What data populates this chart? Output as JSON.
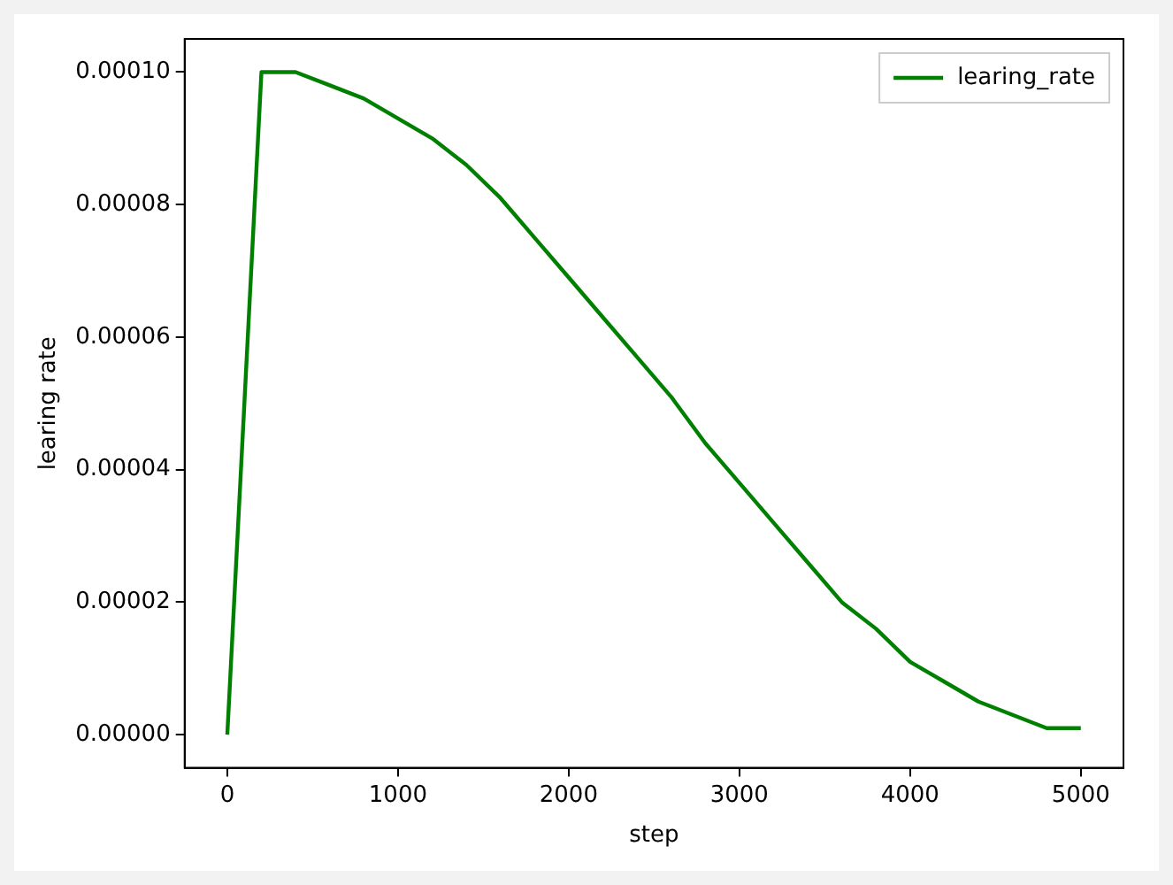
{
  "chart_data": {
    "type": "line",
    "xlabel": "step",
    "ylabel": "learing rate",
    "x": [
      0,
      200,
      400,
      600,
      800,
      1000,
      1200,
      1400,
      1600,
      1800,
      2000,
      2200,
      2400,
      2600,
      2800,
      3000,
      3200,
      3400,
      3600,
      3800,
      4000,
      4200,
      4400,
      4600,
      4800,
      5000
    ],
    "series": [
      {
        "name": "learing_rate",
        "color": "#008000",
        "values": [
          0,
          0.0001,
          0.0001,
          9.8e-05,
          9.6e-05,
          9.3e-05,
          9e-05,
          8.6e-05,
          8.1e-05,
          7.5e-05,
          6.9e-05,
          6.3e-05,
          5.7e-05,
          5.1e-05,
          4.4e-05,
          3.8e-05,
          3.2e-05,
          2.6e-05,
          2e-05,
          1.6e-05,
          1.1e-05,
          8e-06,
          5e-06,
          3e-06,
          1e-06,
          1e-06
        ]
      }
    ],
    "xlim": [
      -250,
      5250
    ],
    "xticks": [
      0,
      1000,
      2000,
      3000,
      4000,
      5000
    ],
    "ylim": [
      -5e-06,
      0.000105
    ],
    "yticks": [
      {
        "value": 0,
        "label": "0.00000"
      },
      {
        "value": 2e-05,
        "label": "0.00002"
      },
      {
        "value": 4e-05,
        "label": "0.00004"
      },
      {
        "value": 6e-05,
        "label": "0.00006"
      },
      {
        "value": 8e-05,
        "label": "0.00008"
      },
      {
        "value": 0.0001,
        "label": "0.00010"
      }
    ],
    "legend": "top right",
    "grid": false,
    "line_style": "solid"
  }
}
